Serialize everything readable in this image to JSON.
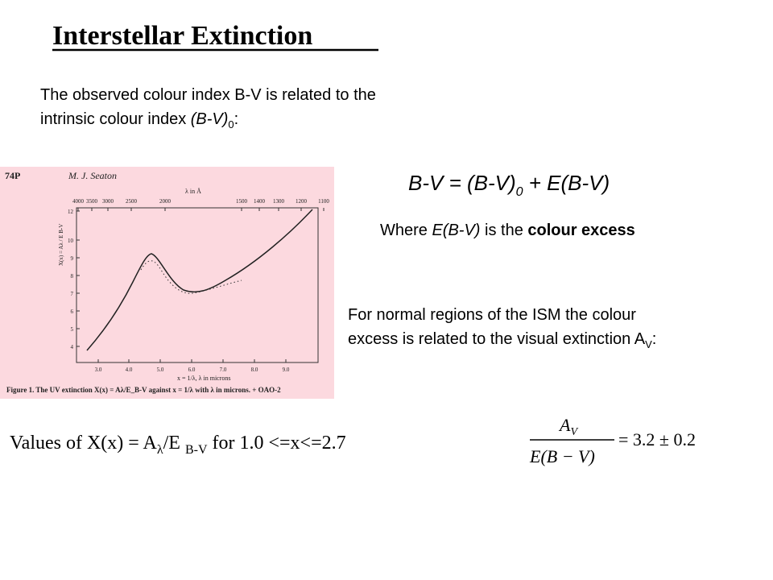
{
  "title": "Interstellar Extinction",
  "intro": {
    "line1": "The observed colour index B-V is related to the",
    "line2": [
      "intrinsic  colour index ",
      "(B-V)",
      "0",
      ":"
    ]
  },
  "equation": [
    "B-V = (B-V)",
    "0",
    " + E(B-V)"
  ],
  "excess_note": [
    "Where ",
    "E(B-V)",
    " is the ",
    "colour excess"
  ],
  "normal_regions": {
    "line1": "For normal regions of the ISM the colour",
    "line2": [
      "excess is related to the visual extinction A",
      "V",
      ":"
    ]
  },
  "values_caption": [
    "Values of X(x) = A",
    "λ",
    "/E ",
    "B-V",
    "  for 1.0 <=x<=2.7"
  ],
  "ratio": {
    "numerator": [
      "A",
      "V"
    ],
    "denominator": "E(B − V)",
    "result": "= 3.2 ± 0.2"
  },
  "figure": {
    "page": "74P",
    "author": "M. J. Seaton",
    "top_axis_label": "λ in Å",
    "top_ticks": [
      "4000",
      "3500",
      "3000",
      "2500",
      "2000",
      "1500",
      "1400",
      "1300",
      "1200",
      "1100"
    ],
    "left_ticks": [
      "4",
      "5",
      "6",
      "7",
      "8",
      "9",
      "10",
      "12"
    ],
    "bottom_ticks": [
      "3.0",
      "4.0",
      "5.0",
      "6.0",
      "7.0",
      "8.0",
      "9.0"
    ],
    "x_label": "x = 1/λ, λ in microns",
    "y_label": "X(x) = Aλ / E B-V",
    "caption": "Figure 1. The UV extinction X(x) = Aλ/E_B-V against x = 1/λ with λ in microns. + OAO-2"
  }
}
